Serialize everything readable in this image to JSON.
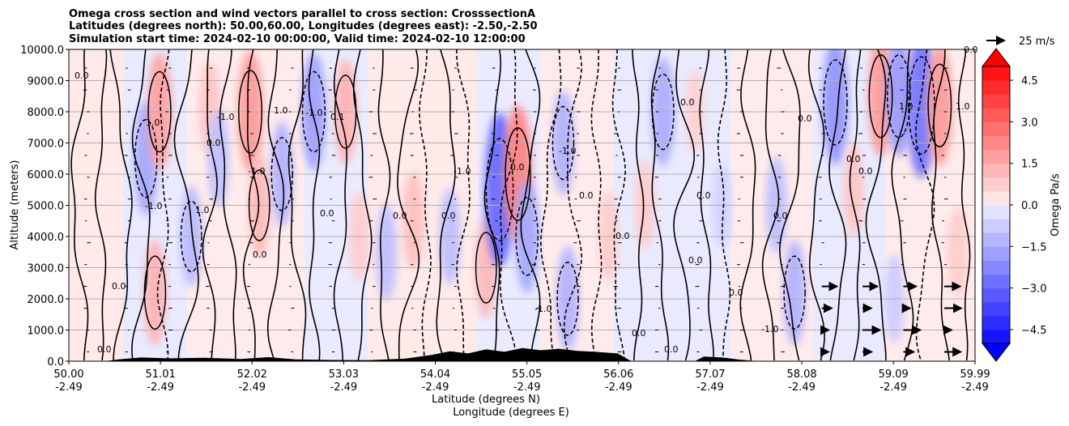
{
  "chart_data": {
    "type": "heatmap",
    "title_lines": [
      "Omega cross section and wind vectors parallel to cross section: CrosssectionA",
      "Latitudes (degrees north): 50.00,60.00, Longitudes (degrees east): -2.50,-2.50",
      "Simulation start time: 2024-02-10 00:00:00, Valid time: 2024-02-10 12:00:00"
    ],
    "ylabel": "Altitude (meters)",
    "xlabel_lat": "Latitude (degrees N)",
    "xlabel_lon": "Longitude (degrees E)",
    "ylim": [
      0,
      10000
    ],
    "xlim": [
      50.0,
      59.99
    ],
    "y_ticks": [
      0,
      1000,
      2000,
      3000,
      4000,
      5000,
      6000,
      7000,
      8000,
      9000,
      10000
    ],
    "y_tick_labels": [
      "0.0",
      "1000.0",
      "2000.0",
      "3000.0",
      "4000.0",
      "5000.0",
      "6000.0",
      "7000.0",
      "8000.0",
      "9000.0",
      "10000.0"
    ],
    "x_ticks": [
      50.0,
      51.01,
      52.02,
      53.03,
      54.04,
      55.05,
      56.06,
      57.07,
      58.08,
      59.09,
      59.99
    ],
    "x_tick_labels_lat": [
      "50.00",
      "51.01",
      "52.02",
      "53.03",
      "54.04",
      "55.05",
      "56.06",
      "57.07",
      "58.08",
      "59.09",
      "59.99"
    ],
    "x_tick_labels_lon": [
      "-2.49",
      "-2.49",
      "-2.49",
      "-2.49",
      "-2.49",
      "-2.49",
      "-2.49",
      "-2.49",
      "-2.49",
      "-2.49",
      "-2.49"
    ],
    "grid": "horizontal",
    "colorbar": {
      "label": "Omega Pa/s",
      "range": [
        -5.0,
        5.0
      ],
      "ticks": [
        4.5,
        3.0,
        1.5,
        0.0,
        -1.5,
        -3.0,
        -4.5
      ],
      "tick_labels": [
        "4.5",
        "3.0",
        "1.5",
        "0.0",
        "−1.5",
        "−3.0",
        "−4.5"
      ],
      "levels": 20,
      "extend": "both"
    },
    "quiver_key": {
      "label": "25 m/s"
    },
    "omega_features": [
      {
        "lat": 50.85,
        "alt": 6500,
        "value": -1.2
      },
      {
        "lat": 50.95,
        "alt": 2200,
        "value": 1.0
      },
      {
        "lat": 51.0,
        "alt": 8000,
        "value": 1.3
      },
      {
        "lat": 51.35,
        "alt": 4000,
        "value": -0.9
      },
      {
        "lat": 51.55,
        "alt": 8100,
        "value": 0.7
      },
      {
        "lat": 51.65,
        "alt": 6500,
        "value": -0.8
      },
      {
        "lat": 52.0,
        "alt": 8000,
        "value": 1.4
      },
      {
        "lat": 52.1,
        "alt": 5000,
        "value": 0.9
      },
      {
        "lat": 52.35,
        "alt": 6000,
        "value": -1.0
      },
      {
        "lat": 52.7,
        "alt": 8000,
        "value": -1.3
      },
      {
        "lat": 53.05,
        "alt": 8000,
        "value": 1.0
      },
      {
        "lat": 53.2,
        "alt": 4000,
        "value": 0.6
      },
      {
        "lat": 53.5,
        "alt": 3500,
        "value": -0.8
      },
      {
        "lat": 53.8,
        "alt": 4500,
        "value": 0.8
      },
      {
        "lat": 54.2,
        "alt": 4000,
        "value": -0.8
      },
      {
        "lat": 54.6,
        "alt": 3000,
        "value": 0.9
      },
      {
        "lat": 54.75,
        "alt": 5500,
        "value": -2.2
      },
      {
        "lat": 54.95,
        "alt": 6000,
        "value": 1.8
      },
      {
        "lat": 55.05,
        "alt": 4000,
        "value": -1.2
      },
      {
        "lat": 55.45,
        "alt": 7000,
        "value": -1.0
      },
      {
        "lat": 55.5,
        "alt": 2000,
        "value": -1.0
      },
      {
        "lat": 55.95,
        "alt": 4000,
        "value": 0.6
      },
      {
        "lat": 56.35,
        "alt": 5000,
        "value": 0.6
      },
      {
        "lat": 56.55,
        "alt": 8000,
        "value": -1.1
      },
      {
        "lat": 56.9,
        "alt": 8000,
        "value": 0.5
      },
      {
        "lat": 57.2,
        "alt": 5000,
        "value": -0.5
      },
      {
        "lat": 57.8,
        "alt": 5000,
        "value": -0.8
      },
      {
        "lat": 58.0,
        "alt": 2200,
        "value": -1.0
      },
      {
        "lat": 58.45,
        "alt": 8300,
        "value": -1.5
      },
      {
        "lat": 58.65,
        "alt": 5500,
        "value": 0.7
      },
      {
        "lat": 58.95,
        "alt": 8500,
        "value": 1.4
      },
      {
        "lat": 59.15,
        "alt": 8500,
        "value": -1.4
      },
      {
        "lat": 59.4,
        "alt": 8200,
        "value": -2.0
      },
      {
        "lat": 59.6,
        "alt": 8200,
        "value": 1.4
      },
      {
        "lat": 59.8,
        "alt": 3500,
        "value": 0.6
      },
      {
        "lat": 59.1,
        "alt": 2000,
        "value": -0.6
      }
    ],
    "terrain": [
      {
        "lat": 50.0,
        "alt": 0
      },
      {
        "lat": 50.4,
        "alt": 0
      },
      {
        "lat": 50.55,
        "alt": 60
      },
      {
        "lat": 50.8,
        "alt": 120
      },
      {
        "lat": 51.1,
        "alt": 90
      },
      {
        "lat": 51.5,
        "alt": 110
      },
      {
        "lat": 51.9,
        "alt": 70
      },
      {
        "lat": 52.2,
        "alt": 130
      },
      {
        "lat": 52.5,
        "alt": 60
      },
      {
        "lat": 52.9,
        "alt": 40
      },
      {
        "lat": 53.3,
        "alt": 30
      },
      {
        "lat": 53.7,
        "alt": 80
      },
      {
        "lat": 54.0,
        "alt": 200
      },
      {
        "lat": 54.2,
        "alt": 320
      },
      {
        "lat": 54.4,
        "alt": 250
      },
      {
        "lat": 54.6,
        "alt": 380
      },
      {
        "lat": 54.8,
        "alt": 300
      },
      {
        "lat": 55.0,
        "alt": 420
      },
      {
        "lat": 55.2,
        "alt": 350
      },
      {
        "lat": 55.4,
        "alt": 400
      },
      {
        "lat": 55.6,
        "alt": 330
      },
      {
        "lat": 55.8,
        "alt": 300
      },
      {
        "lat": 56.05,
        "alt": 250
      },
      {
        "lat": 56.2,
        "alt": 0
      },
      {
        "lat": 56.9,
        "alt": 0
      },
      {
        "lat": 57.0,
        "alt": 150
      },
      {
        "lat": 57.2,
        "alt": 120
      },
      {
        "lat": 57.4,
        "alt": 50
      },
      {
        "lat": 57.6,
        "alt": 0
      },
      {
        "lat": 59.99,
        "alt": 0
      }
    ]
  }
}
